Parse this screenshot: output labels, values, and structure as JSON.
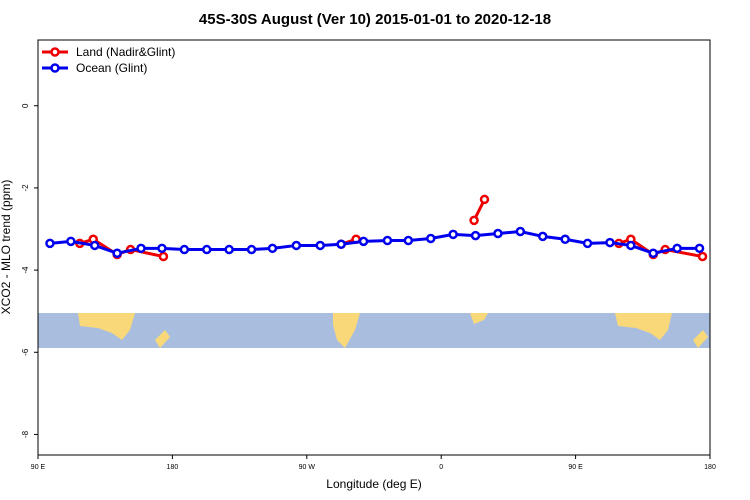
{
  "chart_data": {
    "type": "line",
    "title": "45S-30S August (Ver 10)   2015-01-01 to 2020-12-18",
    "x_label": "Longitude (deg E)",
    "y_label": "XCO2 - MLO trend (ppm)",
    "xlim": [
      90,
      540
    ],
    "ylim": [
      -8.5,
      1.6
    ],
    "xticks": [
      {
        "value": 90,
        "label": "90 E"
      },
      180,
      {
        "value": 270,
        "label": "90 W"
      },
      {
        "value": 360,
        "label": "0"
      },
      {
        "value": 450,
        "label": "90 E"
      },
      {
        "value": 540,
        "label": "180"
      }
    ],
    "yticks": [
      0,
      -2,
      -4,
      -6,
      -8
    ],
    "legend": "top-left",
    "series": [
      {
        "name": "Land (Nadir&Glint)",
        "color": "#ee0000",
        "x": [
          118,
          127,
          143,
          152,
          174,
          null,
          293,
          303,
          null,
          382,
          389,
          null,
          479,
          487,
          502,
          510,
          535
        ],
        "values": [
          -3.35,
          -3.25,
          -3.62,
          -3.5,
          -3.67,
          null,
          -3.37,
          -3.25,
          null,
          -2.79,
          -2.28,
          null,
          -3.35,
          -3.25,
          -3.62,
          -3.5,
          -3.67
        ]
      },
      {
        "name": "Ocean (Glint)",
        "color": "#0000ee",
        "x": [
          98,
          112,
          128,
          143,
          159,
          173,
          188,
          203,
          218,
          233,
          247,
          263,
          279,
          293,
          308,
          324,
          338,
          353,
          368,
          383,
          398,
          413,
          428,
          443,
          458,
          473,
          487,
          502,
          518,
          533
        ],
        "values": [
          -3.35,
          -3.3,
          -3.4,
          -3.59,
          -3.47,
          -3.47,
          -3.5,
          -3.5,
          -3.5,
          -3.5,
          -3.47,
          -3.4,
          -3.4,
          -3.37,
          -3.3,
          -3.28,
          -3.28,
          -3.23,
          -3.13,
          -3.16,
          -3.11,
          -3.06,
          -3.18,
          -3.25,
          -3.35,
          -3.33,
          -3.4,
          -3.59,
          -3.47,
          -3.47
        ]
      }
    ]
  }
}
